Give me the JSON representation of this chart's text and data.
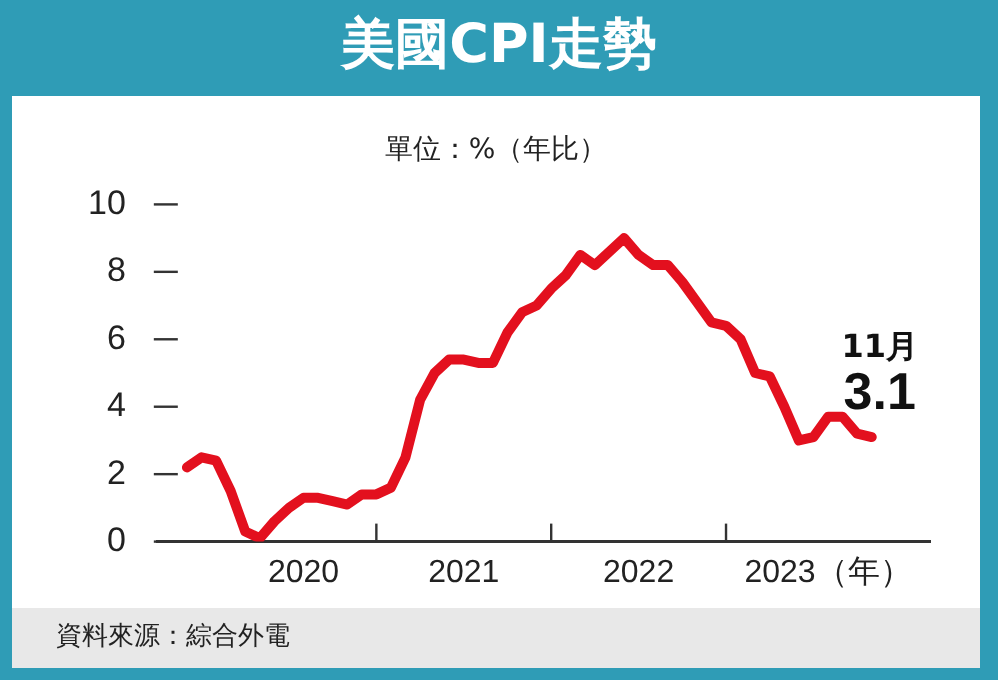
{
  "chart_data": {
    "type": "line",
    "title": "美國CPI走勢",
    "subtitle": "單位：%（年比）",
    "x": [
      "2019-12",
      "2020-01",
      "2020-02",
      "2020-03",
      "2020-04",
      "2020-05",
      "2020-06",
      "2020-07",
      "2020-08",
      "2020-09",
      "2020-10",
      "2020-11",
      "2020-12",
      "2021-01",
      "2021-02",
      "2021-03",
      "2021-04",
      "2021-05",
      "2021-06",
      "2021-07",
      "2021-08",
      "2021-09",
      "2021-10",
      "2021-11",
      "2021-12",
      "2022-01",
      "2022-02",
      "2022-03",
      "2022-04",
      "2022-05",
      "2022-06",
      "2022-07",
      "2022-08",
      "2022-09",
      "2022-10",
      "2022-11",
      "2022-12",
      "2023-01",
      "2023-02",
      "2023-03",
      "2023-04",
      "2023-05",
      "2023-06",
      "2023-07",
      "2023-08",
      "2023-09",
      "2023-10",
      "2023-11"
    ],
    "series": [
      {
        "color": "#e3101e",
        "values": [
          2.2,
          2.5,
          2.4,
          1.5,
          0.3,
          0.1,
          0.6,
          1.0,
          1.3,
          1.3,
          1.2,
          1.1,
          1.4,
          1.4,
          1.6,
          2.5,
          4.2,
          5.0,
          5.4,
          5.4,
          5.3,
          5.3,
          6.2,
          6.8,
          7.0,
          7.5,
          7.9,
          8.5,
          8.2,
          8.6,
          9.0,
          8.5,
          8.2,
          8.2,
          7.7,
          7.1,
          6.5,
          6.4,
          6.0,
          5.0,
          4.9,
          4.0,
          3.0,
          3.1,
          3.7,
          3.7,
          3.2,
          3.1
        ]
      }
    ],
    "xlim": [
      "2019-10",
      "2024-03"
    ],
    "xticks": [
      {
        "value": "2020-08",
        "label": "2020"
      },
      {
        "value": "2021-01",
        "label": null
      },
      {
        "value": "2021-07",
        "label": "2021"
      },
      {
        "value": "2022-01",
        "label": null
      },
      {
        "value": "2022-07",
        "label": "2022"
      },
      {
        "value": "2023-01",
        "label": null
      },
      {
        "value": "2023-08",
        "label": "2023（年）"
      }
    ],
    "ylim": [
      0,
      10
    ],
    "yticks": [
      0,
      2,
      4,
      6,
      8,
      10
    ],
    "grid": false,
    "legend": false,
    "marker": "none",
    "line_style": "solid",
    "annotations": [
      {
        "text": "11月",
        "x": "2023-11",
        "y": 3.1
      },
      {
        "text": "3.1",
        "x": "2023-11",
        "y": 3.1
      },
      "資料來源：綜合外電"
    ]
  }
}
